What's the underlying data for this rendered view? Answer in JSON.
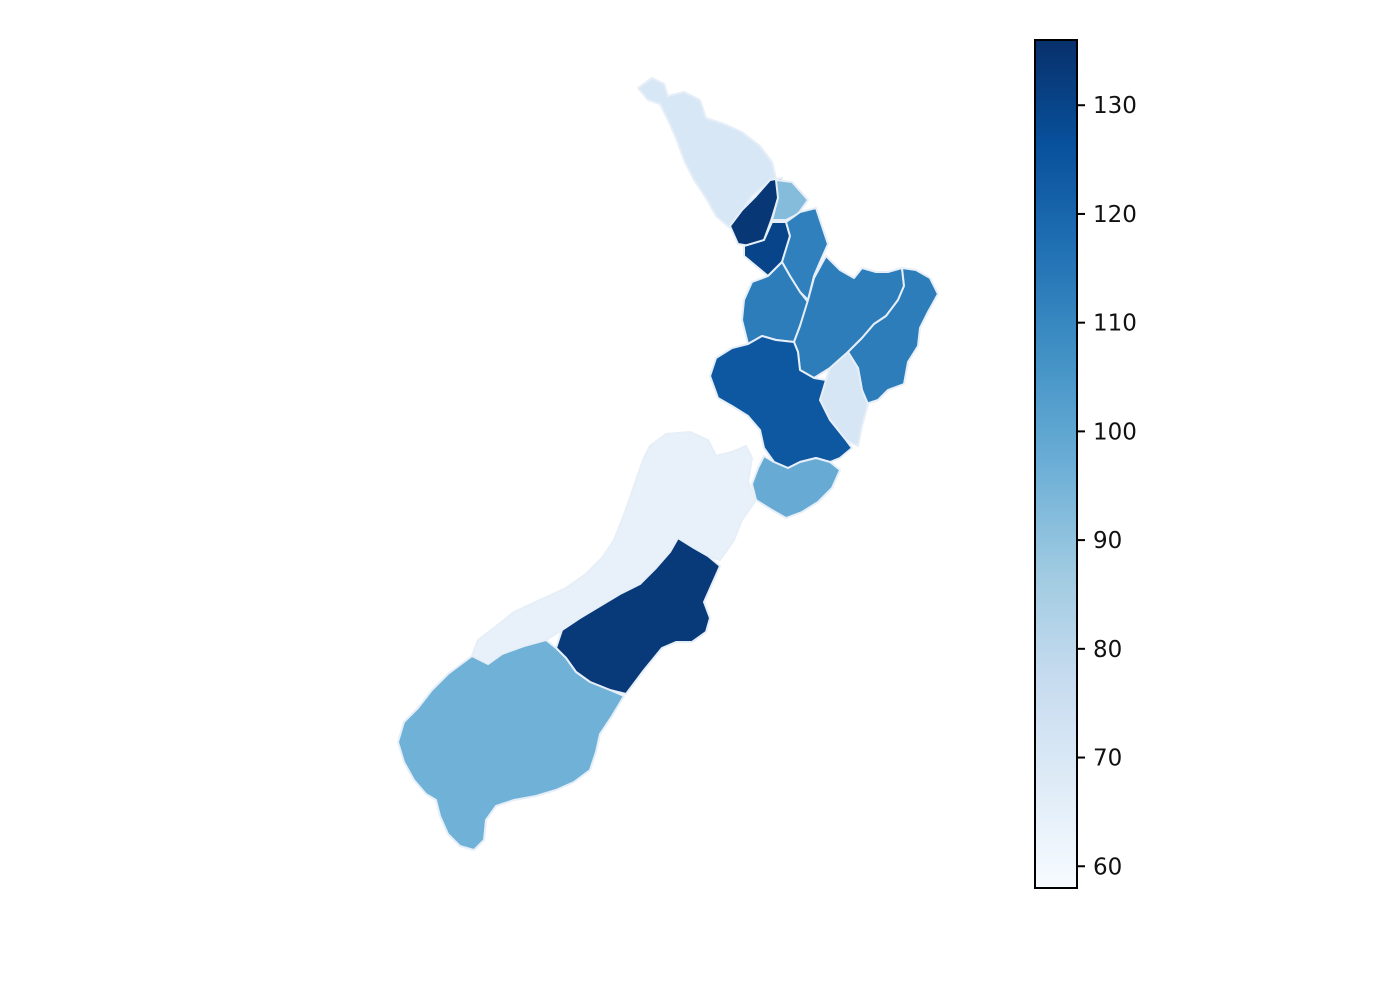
{
  "chart_data": {
    "type": "choropleth",
    "title": "",
    "colorbar": {
      "colormap": "Blues",
      "min": 58,
      "max": 136,
      "ticks": [
        60,
        70,
        80,
        90,
        100,
        110,
        120,
        130
      ],
      "tick_labels": [
        "60",
        "70",
        "80",
        "90",
        "100",
        "110",
        "120",
        "130"
      ]
    },
    "regions": [
      {
        "id": "northland",
        "value": 70
      },
      {
        "id": "auckland-west",
        "value": 134
      },
      {
        "id": "auckland-east",
        "value": 92
      },
      {
        "id": "auckland-central",
        "value": 130
      },
      {
        "id": "waikato",
        "value": 113
      },
      {
        "id": "bay-of-plenty",
        "value": 113
      },
      {
        "id": "coromandel",
        "value": 112
      },
      {
        "id": "east-coast",
        "value": 113
      },
      {
        "id": "hawkes-bay",
        "value": 71
      },
      {
        "id": "taranaki-manawatu",
        "value": 124
      },
      {
        "id": "wellington",
        "value": 98
      },
      {
        "id": "west-coast-nelson",
        "value": 64
      },
      {
        "id": "canterbury",
        "value": 133
      },
      {
        "id": "otago-southland",
        "value": 96
      }
    ]
  }
}
